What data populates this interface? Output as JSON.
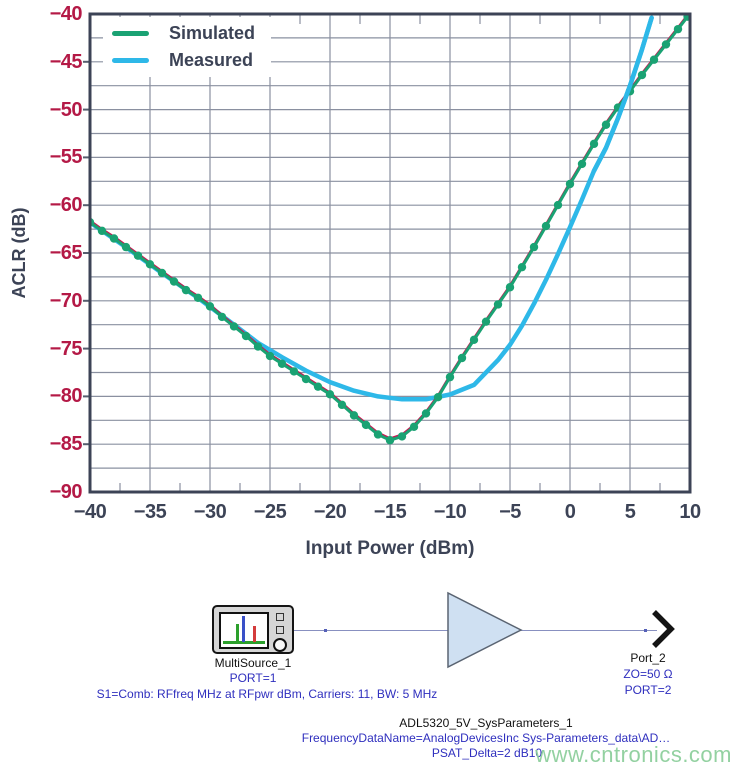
{
  "chart_data": {
    "type": "line",
    "title": "",
    "xlabel": "Input Power (dBm)",
    "ylabel": "ACLR (dB)",
    "xlim": [
      -40,
      10
    ],
    "ylim": [
      -90,
      -40
    ],
    "x_tick_step": 5,
    "x_minor_tick_step": 2.5,
    "y_label_step": 5,
    "y_grid_step": 2.5,
    "grid": true,
    "legend_position": "top-left",
    "x_tick_labels": [
      "−40",
      "−35",
      "−30",
      "−25",
      "−20",
      "−15",
      "−10",
      "−5",
      "0",
      "5",
      "10"
    ],
    "y_tick_labels": [
      "−40",
      "−45",
      "−50",
      "−55",
      "−60",
      "−65",
      "−70",
      "−75",
      "−80",
      "−85",
      "−90"
    ],
    "colors": {
      "grid": "#8a90a0",
      "axis_border": "#3c4356",
      "y_tick_label": "#b41946",
      "x_tick_label": "#3c4356"
    },
    "series": [
      {
        "name": "Simulated",
        "color": "#1aa273",
        "underline_color": "#c41a52",
        "marker": "circle",
        "points": [
          [
            -40,
            -61.7
          ],
          [
            -39,
            -62.6
          ],
          [
            -38,
            -63.4
          ],
          [
            -37,
            -64.3
          ],
          [
            -36,
            -65.2
          ],
          [
            -35,
            -66.1
          ],
          [
            -34,
            -67.0
          ],
          [
            -33,
            -67.9
          ],
          [
            -32,
            -68.8
          ],
          [
            -31,
            -69.6
          ],
          [
            -30,
            -70.5
          ],
          [
            -29,
            -71.6
          ],
          [
            -28,
            -72.6
          ],
          [
            -27,
            -73.6
          ],
          [
            -26,
            -74.7
          ],
          [
            -25,
            -75.7
          ],
          [
            -24,
            -76.5
          ],
          [
            -23,
            -77.3
          ],
          [
            -22,
            -78.1
          ],
          [
            -21,
            -78.9
          ],
          [
            -20,
            -79.7
          ],
          [
            -19,
            -80.8
          ],
          [
            -18,
            -81.9
          ],
          [
            -17,
            -82.9
          ],
          [
            -16,
            -83.9
          ],
          [
            -15,
            -84.5
          ],
          [
            -14,
            -84.1
          ],
          [
            -13,
            -83.1
          ],
          [
            -12,
            -81.7
          ],
          [
            -11,
            -80.0
          ],
          [
            -10,
            -77.9
          ],
          [
            -9,
            -75.9
          ],
          [
            -8,
            -74.0
          ],
          [
            -7,
            -72.1
          ],
          [
            -6,
            -70.3
          ],
          [
            -5,
            -68.5
          ],
          [
            -4,
            -66.4
          ],
          [
            -3,
            -64.3
          ],
          [
            -2,
            -62.1
          ],
          [
            -1,
            -59.9
          ],
          [
            0,
            -57.7
          ],
          [
            1,
            -55.6
          ],
          [
            2,
            -53.5
          ],
          [
            3,
            -51.5
          ],
          [
            4,
            -49.7
          ],
          [
            5,
            -48.0
          ],
          [
            6,
            -46.3
          ],
          [
            7,
            -44.7
          ],
          [
            8,
            -43.1
          ],
          [
            9,
            -41.5
          ],
          [
            9.8,
            -40.2
          ]
        ]
      },
      {
        "name": "Measured",
        "color": "#2eb8e8",
        "marker": "none",
        "points": [
          [
            -40,
            -61.8
          ],
          [
            -37,
            -64.4
          ],
          [
            -34,
            -67.1
          ],
          [
            -31,
            -69.7
          ],
          [
            -28,
            -72.5
          ],
          [
            -26,
            -74.4
          ],
          [
            -24,
            -75.9
          ],
          [
            -22,
            -77.3
          ],
          [
            -20,
            -78.5
          ],
          [
            -18,
            -79.4
          ],
          [
            -16,
            -80.0
          ],
          [
            -14,
            -80.3
          ],
          [
            -12,
            -80.3
          ],
          [
            -10,
            -79.8
          ],
          [
            -8,
            -78.8
          ],
          [
            -6,
            -76.2
          ],
          [
            -5,
            -74.6
          ],
          [
            -4,
            -72.6
          ],
          [
            -3,
            -70.3
          ],
          [
            -2,
            -67.8
          ],
          [
            -1,
            -65.1
          ],
          [
            0,
            -62.3
          ],
          [
            1,
            -59.4
          ],
          [
            2,
            -56.4
          ],
          [
            3,
            -54.0
          ],
          [
            4,
            -50.9
          ],
          [
            5,
            -47.5
          ],
          [
            6,
            -43.7
          ],
          [
            6.8,
            -40.4
          ]
        ]
      }
    ]
  },
  "schematic": {
    "source_label": "MultiSource_1",
    "source_port": "PORT=1",
    "source_params": "S1=Comb: RFfreq MHz at RFpwr dBm, Carriers: 11, BW: 5 MHz",
    "amp_name": "ADL5320_5V_SysParameters_1",
    "amp_param1": "FrequencyDataName=AnalogDevicesInc Sys-Parameters_data\\AD…",
    "amp_param2": "PSAT_Delta=2 dB10",
    "port_label": "Port_2",
    "port_z": "ZO=50 Ω",
    "port_num": "PORT=2",
    "text_blue": "#2f2fbe",
    "text_black": "#111111"
  },
  "watermark": {
    "text": "www.cntronics.com",
    "color": "#8ecf9d"
  }
}
